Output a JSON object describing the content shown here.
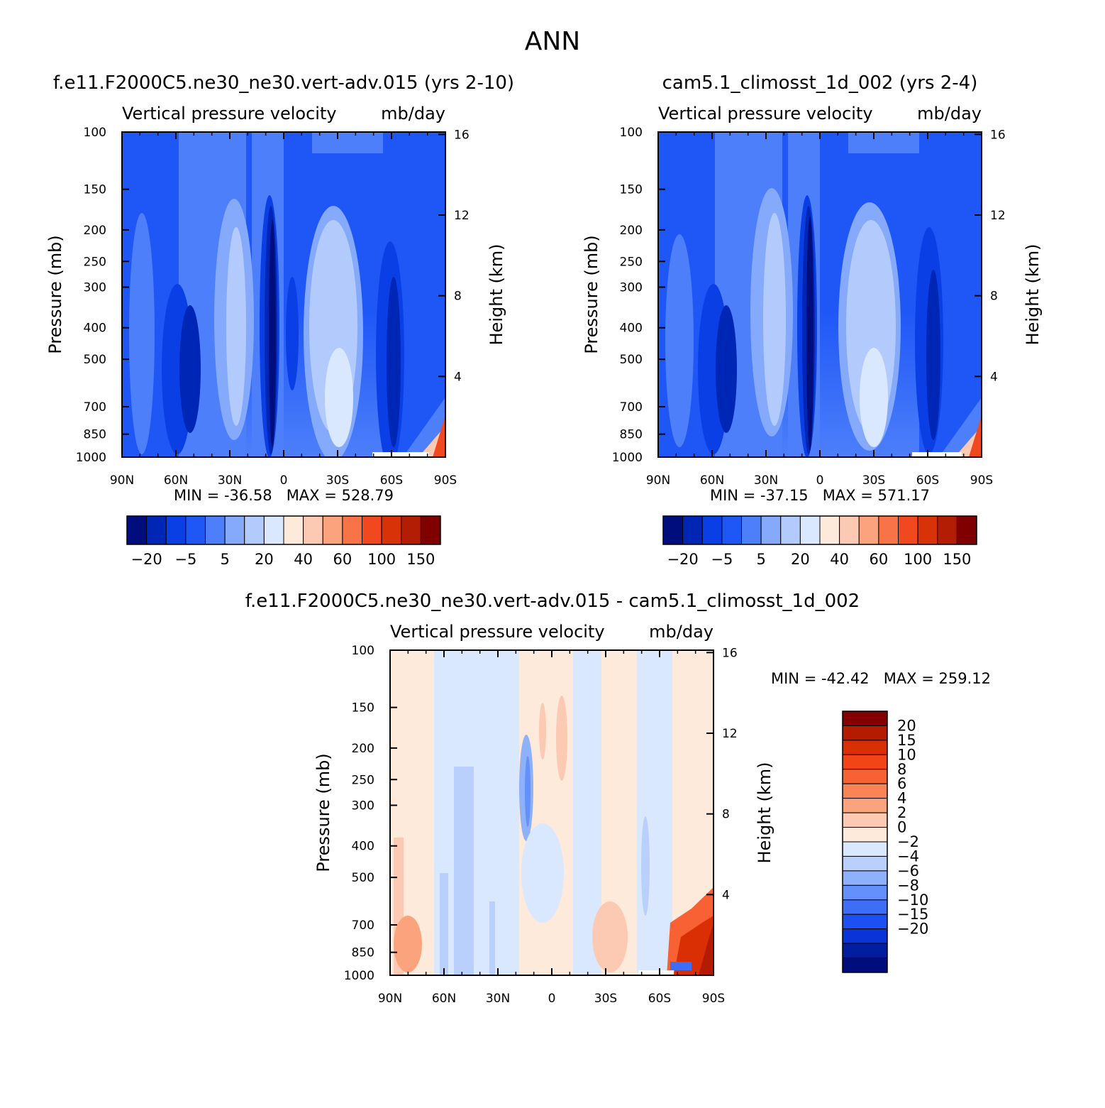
{
  "figure": {
    "title": "ANN",
    "panels": [
      {
        "id": "test",
        "title": "f.e11.F2000C5.ne30_ne30.vert-adv.015 (yrs 2-10)",
        "variable": "Vertical pressure velocity",
        "units": "mb/day",
        "stats": "MIN = -36.58   MAX = 528.79"
      },
      {
        "id": "ref",
        "title": "cam5.1_climosst_1d_002 (yrs 2-4)",
        "variable": "Vertical pressure velocity",
        "units": "mb/day",
        "stats": "MIN = -37.15   MAX = 571.17"
      },
      {
        "id": "diff",
        "title": "f.e11.F2000C5.ne30_ne30.vert-adv.015 - cam5.1_climosst_1d_002",
        "variable": "Vertical pressure velocity",
        "units": "mb/day",
        "stats": "MIN = -42.42   MAX = 259.12"
      }
    ]
  },
  "chart_data": [
    {
      "type": "heatmap",
      "title": "f.e11.F2000C5.ne30_ne30.vert-adv.015 (yrs 2-10)",
      "xlabel": "",
      "ylabel": "Pressure (mb)",
      "ylabel_right": "Height (km)",
      "x_ticks": [
        "90N",
        "60N",
        "30N",
        "0",
        "30S",
        "60S",
        "90S"
      ],
      "x_range": [
        90,
        -90
      ],
      "y_ticks": [
        100,
        150,
        200,
        250,
        300,
        400,
        500,
        700,
        850,
        1000
      ],
      "y_range": [
        100,
        1000
      ],
      "y_scale": "log",
      "y_right_ticks": [
        16,
        12,
        8,
        4
      ],
      "min": -36.58,
      "max": 528.79,
      "colorbar_levels": [
        -20,
        -5,
        5,
        20,
        40,
        60,
        100,
        150
      ]
    },
    {
      "type": "heatmap",
      "title": "cam5.1_climosst_1d_002 (yrs 2-4)",
      "xlabel": "",
      "ylabel": "Pressure (mb)",
      "ylabel_right": "Height (km)",
      "x_ticks": [
        "90N",
        "60N",
        "30N",
        "0",
        "30S",
        "60S",
        "90S"
      ],
      "x_range": [
        90,
        -90
      ],
      "y_ticks": [
        100,
        150,
        200,
        250,
        300,
        400,
        500,
        700,
        850,
        1000
      ],
      "y_range": [
        100,
        1000
      ],
      "y_scale": "log",
      "y_right_ticks": [
        16,
        12,
        8,
        4
      ],
      "min": -37.15,
      "max": 571.17,
      "colorbar_levels": [
        -20,
        -5,
        5,
        20,
        40,
        60,
        100,
        150
      ]
    },
    {
      "type": "heatmap",
      "title": "f.e11.F2000C5.ne30_ne30.vert-adv.015 - cam5.1_climosst_1d_002",
      "xlabel": "",
      "ylabel": "Pressure (mb)",
      "ylabel_right": "Height (km)",
      "x_ticks": [
        "90N",
        "60N",
        "30N",
        "0",
        "30S",
        "60S",
        "90S"
      ],
      "x_range": [
        90,
        -90
      ],
      "y_ticks": [
        100,
        150,
        200,
        250,
        300,
        400,
        500,
        700,
        850,
        1000
      ],
      "y_range": [
        100,
        1000
      ],
      "y_scale": "log",
      "y_right_ticks": [
        16,
        12,
        8,
        4
      ],
      "min": -42.42,
      "max": 259.12,
      "colorbar_levels": [
        -20,
        -15,
        -10,
        -8,
        -6,
        -4,
        -2,
        0,
        2,
        4,
        6,
        8,
        10,
        15,
        20
      ]
    }
  ],
  "palettes": {
    "main": [
      "#000e7d",
      "#0026b5",
      "#0a3fe6",
      "#1f57f7",
      "#4d7ffa",
      "#85a9fb",
      "#b3cafd",
      "#d9e8fe",
      "#feeadb",
      "#fccab2",
      "#faa37d",
      "#f87448",
      "#f2481f",
      "#d83209",
      "#b21d04",
      "#800000"
    ],
    "diff": [
      "#000e7d",
      "#001e9e",
      "#0a33d8",
      "#1e4ff0",
      "#3c6ef8",
      "#6390fa",
      "#8eb1fb",
      "#b9d0fd",
      "#d9e8fe",
      "#feeadb",
      "#fccab2",
      "#faa37d",
      "#f98456",
      "#f86133",
      "#f34417",
      "#da2f04",
      "#b41b00",
      "#850000"
    ]
  }
}
